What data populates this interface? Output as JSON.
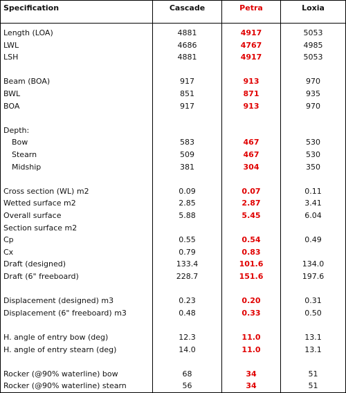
{
  "table": {
    "headers": [
      "Specification",
      "Cascade",
      "Petra",
      "Loxia"
    ],
    "groups": [
      {
        "rows": [
          [
            "Length (LOA)",
            "4881",
            "4917",
            "5053"
          ],
          [
            "LWL",
            "4686",
            "4767",
            "4985"
          ],
          [
            "LSH",
            "4881",
            "4917",
            "5053"
          ]
        ]
      },
      {
        "rows": [
          [
            "Beam (BOA)",
            "917",
            "913",
            "970"
          ],
          [
            "BWL",
            "851",
            "871",
            "935"
          ],
          [
            "BOA",
            "917",
            "913",
            "970"
          ]
        ]
      },
      {
        "heading": "Depth:",
        "indent": true,
        "rows": [
          [
            "Bow",
            "583",
            "467",
            "530"
          ],
          [
            "Stearn",
            "509",
            "467",
            "530"
          ],
          [
            "Midship",
            "381",
            "304",
            "350"
          ]
        ]
      },
      {
        "rows": [
          [
            "Cross section (WL) m2",
            "0.09",
            "0.07",
            "0.11"
          ],
          [
            "Wetted surface m2",
            "2.85",
            "2.87",
            "3.41"
          ],
          [
            "Overall surface",
            "5.88",
            "5.45",
            "6.04"
          ],
          [
            "Section surface m2"
          ],
          [
            "Cp",
            "0.55",
            "0.54",
            "0.49"
          ],
          [
            "Cx",
            "0.79",
            "0.83"
          ],
          [
            "Draft (designed)",
            "133.4",
            "101.6",
            "134.0"
          ],
          [
            "Draft (6\" freeboard)",
            "228.7",
            "151.6",
            "197.6"
          ]
        ]
      },
      {
        "rows": [
          [
            "Displacement (designed) m3",
            "0.23",
            "0.20",
            "0.31"
          ],
          [
            "Displacement (6\" freeboard) m3",
            "0.48",
            "0.33",
            "0.50"
          ]
        ]
      },
      {
        "rows": [
          [
            "H. angle of entry bow (deg)",
            "12.3",
            "11.0",
            "13.1"
          ],
          [
            "H. angle of entry stearn (deg)",
            "14.0",
            "11.0",
            "13.1"
          ]
        ]
      },
      {
        "rows": [
          [
            "Rocker (@90% waterline) bow",
            "68",
            "34",
            "51"
          ],
          [
            "Rocker (@90% waterline) stearn",
            "56",
            "34",
            "51"
          ]
        ]
      }
    ],
    "highlight_column": 2,
    "highlight_color": "#e00000"
  }
}
